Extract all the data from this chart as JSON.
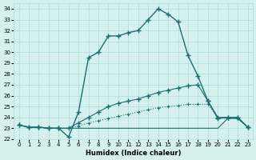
{
  "xlabel": "Humidex (Indice chaleur)",
  "ylabel": "",
  "bg_color": "#d6f0f0",
  "grid_color": "#aadddd",
  "line_color": "#1a7070",
  "xlim": [
    -0.5,
    23.5
  ],
  "ylim": [
    22,
    34.5
  ],
  "yticks": [
    22,
    23,
    24,
    25,
    26,
    27,
    28,
    29,
    30,
    31,
    32,
    33,
    34
  ],
  "xticks": [
    0,
    1,
    2,
    3,
    4,
    5,
    6,
    7,
    8,
    9,
    10,
    11,
    12,
    13,
    14,
    15,
    16,
    17,
    18,
    19,
    20,
    21,
    22,
    23
  ],
  "curve1_x": [
    0,
    1,
    2,
    3,
    4,
    5,
    6,
    7,
    8,
    9,
    10,
    11,
    12,
    13,
    14,
    15,
    16,
    17,
    18,
    19,
    20,
    21,
    22,
    23
  ],
  "curve1_y": [
    23.3,
    23.1,
    23.1,
    23.0,
    23.0,
    22.2,
    24.5,
    29.5,
    30.0,
    31.5,
    31.5,
    31.8,
    32.0,
    33.0,
    34.0,
    33.5,
    32.8,
    29.7,
    27.8,
    25.5,
    23.9,
    24.0,
    24.0,
    23.1
  ],
  "curve2_x": [
    0,
    1,
    2,
    3,
    4,
    5,
    6,
    7,
    8,
    9,
    10,
    11,
    12,
    13,
    14,
    15,
    16,
    17,
    18,
    19,
    20,
    21,
    22,
    23
  ],
  "curve2_y": [
    23.3,
    23.1,
    23.1,
    23.0,
    23.0,
    23.0,
    23.5,
    24.0,
    24.5,
    25.0,
    25.3,
    25.5,
    25.7,
    26.0,
    26.3,
    26.5,
    26.7,
    26.9,
    27.0,
    25.5,
    24.0,
    24.0,
    24.0,
    23.1
  ],
  "curve3_x": [
    0,
    1,
    2,
    3,
    4,
    5,
    6,
    7,
    8,
    9,
    10,
    11,
    12,
    13,
    14,
    15,
    16,
    17,
    18,
    19,
    20,
    21,
    22,
    23
  ],
  "curve3_y": [
    23.3,
    23.1,
    23.1,
    23.0,
    23.0,
    23.0,
    23.2,
    23.5,
    23.7,
    23.9,
    24.1,
    24.3,
    24.5,
    24.7,
    24.9,
    25.0,
    25.1,
    25.2,
    25.2,
    25.2,
    24.0,
    23.9,
    23.9,
    23.1
  ],
  "curve4_x": [
    0,
    1,
    2,
    3,
    4,
    5,
    6,
    7,
    8,
    9,
    10,
    11,
    12,
    13,
    14,
    15,
    16,
    17,
    18,
    19,
    20,
    21,
    22,
    23
  ],
  "curve4_y": [
    23.3,
    23.1,
    23.1,
    23.0,
    23.0,
    23.0,
    23.0,
    23.0,
    23.0,
    23.0,
    23.0,
    23.0,
    23.0,
    23.0,
    23.0,
    23.0,
    23.0,
    23.0,
    23.0,
    23.0,
    23.0,
    23.9,
    23.9,
    23.1
  ]
}
